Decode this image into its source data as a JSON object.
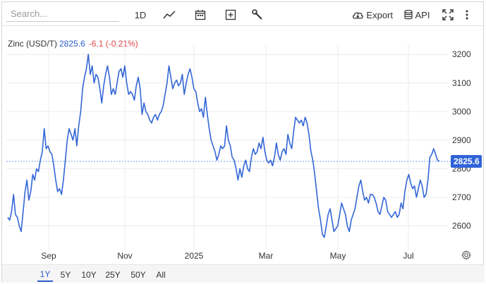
{
  "toolbar": {
    "search_placeholder": "Search...",
    "interval_label": "1D",
    "export_label": "Export",
    "api_label": "API"
  },
  "quote": {
    "name": "Zinc (USD/T)",
    "price": "2825.6",
    "change": "-6.1 (-0.21%)"
  },
  "ranges": [
    "1Y",
    "5Y",
    "10Y",
    "25Y",
    "50Y",
    "All"
  ],
  "active_range": "1Y",
  "colors": {
    "line": "#3366d6",
    "accent": "#2b5ecf",
    "negative": "#e0464a"
  },
  "chart_data": {
    "type": "line",
    "title": "",
    "xlabel": "",
    "ylabel": "",
    "x_tick_labels": [
      "Sep",
      "Nov",
      "2025",
      "Mar",
      "May",
      "Jul"
    ],
    "y_ticks": [
      2600,
      2700,
      2800,
      2900,
      3000,
      3100,
      3200
    ],
    "y_tick_labels": [
      "2600",
      "2700",
      "2800",
      "2900",
      "3000",
      "3100",
      "3200"
    ],
    "ylim": [
      2515,
      3235
    ],
    "last_value": 2825.6,
    "last_value_label": "2825.6",
    "grid": true,
    "series": [
      {
        "values": [
          2630,
          2620,
          2650,
          2710,
          2640,
          2630,
          2600,
          2580,
          2650,
          2720,
          2760,
          2690,
          2720,
          2780,
          2760,
          2800,
          2790,
          2830,
          2860,
          2940,
          2870,
          2880,
          2860,
          2850,
          2810,
          2760,
          2720,
          2730,
          2710,
          2760,
          2830,
          2900,
          2940,
          2920,
          2900,
          2940,
          2880,
          2950,
          3000,
          3080,
          3120,
          3150,
          3200,
          3130,
          3160,
          3100,
          3130,
          3120,
          3080,
          3030,
          3090,
          3130,
          3160,
          3120,
          3060,
          3080,
          3060,
          3100,
          3140,
          3150,
          3120,
          3160,
          3100,
          3060,
          3070,
          3060,
          3040,
          3090,
          3120,
          3080,
          2990,
          3030,
          3000,
          2990,
          2970,
          2960,
          2980,
          2990,
          2970,
          2990,
          3000,
          3020,
          3060,
          3100,
          3160,
          3120,
          3080,
          3100,
          3110,
          3090,
          3100,
          3130,
          3060,
          3100,
          3130,
          3150,
          3120,
          3080,
          3070,
          3030,
          3000,
          3010,
          2980,
          3050,
          2990,
          2940,
          2900,
          2880,
          2860,
          2830,
          2850,
          2880,
          2870,
          2880,
          2950,
          2900,
          2880,
          2840,
          2830,
          2800,
          2760,
          2800,
          2770,
          2810,
          2830,
          2800,
          2790,
          2840,
          2870,
          2850,
          2860,
          2890,
          2870,
          2910,
          2860,
          2830,
          2820,
          2830,
          2810,
          2840,
          2890,
          2850,
          2830,
          2860,
          2870,
          2850,
          2920,
          2890,
          2870,
          2930,
          2980,
          2970,
          2960,
          2970,
          2950,
          2980,
          2960,
          2920,
          2860,
          2830,
          2780,
          2720,
          2660,
          2620,
          2570,
          2560,
          2600,
          2640,
          2660,
          2620,
          2580,
          2590,
          2600,
          2640,
          2680,
          2660,
          2640,
          2600,
          2580,
          2620,
          2640,
          2660,
          2700,
          2740,
          2760,
          2720,
          2690,
          2700,
          2680,
          2710,
          2710,
          2700,
          2680,
          2650,
          2640,
          2670,
          2700,
          2690,
          2650,
          2640,
          2630,
          2640,
          2650,
          2630,
          2640,
          2680,
          2660,
          2720,
          2760,
          2780,
          2750,
          2730,
          2740,
          2700,
          2730,
          2760,
          2740,
          2700,
          2710,
          2760,
          2840,
          2850,
          2870,
          2850,
          2830,
          2826
        ]
      }
    ]
  }
}
